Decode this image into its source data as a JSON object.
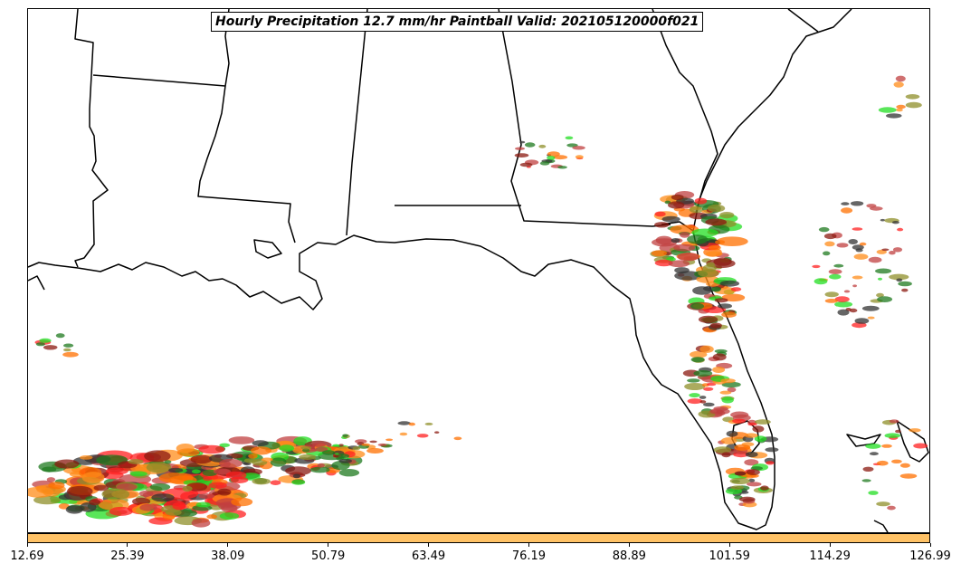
{
  "title": "Hourly Precipitation 12.7 mm/hr Paintball Valid: 202105120000f021",
  "colorbar": {
    "color": "#ffc266",
    "ticks": [
      "12.69",
      "25.39",
      "38.09",
      "50.79",
      "63.49",
      "76.19",
      "88.89",
      "101.59",
      "114.29",
      "126.99"
    ]
  },
  "colors": {
    "red": "#ff2020",
    "orange": "#ff8c1a",
    "dark_orange": "#ff7000",
    "dark_red": "#8b1a10",
    "green": "#22dd22",
    "dark_green": "#1f7a1f",
    "olive": "#8f8f2a",
    "indian_red": "#c04040",
    "black": "#333333"
  }
}
